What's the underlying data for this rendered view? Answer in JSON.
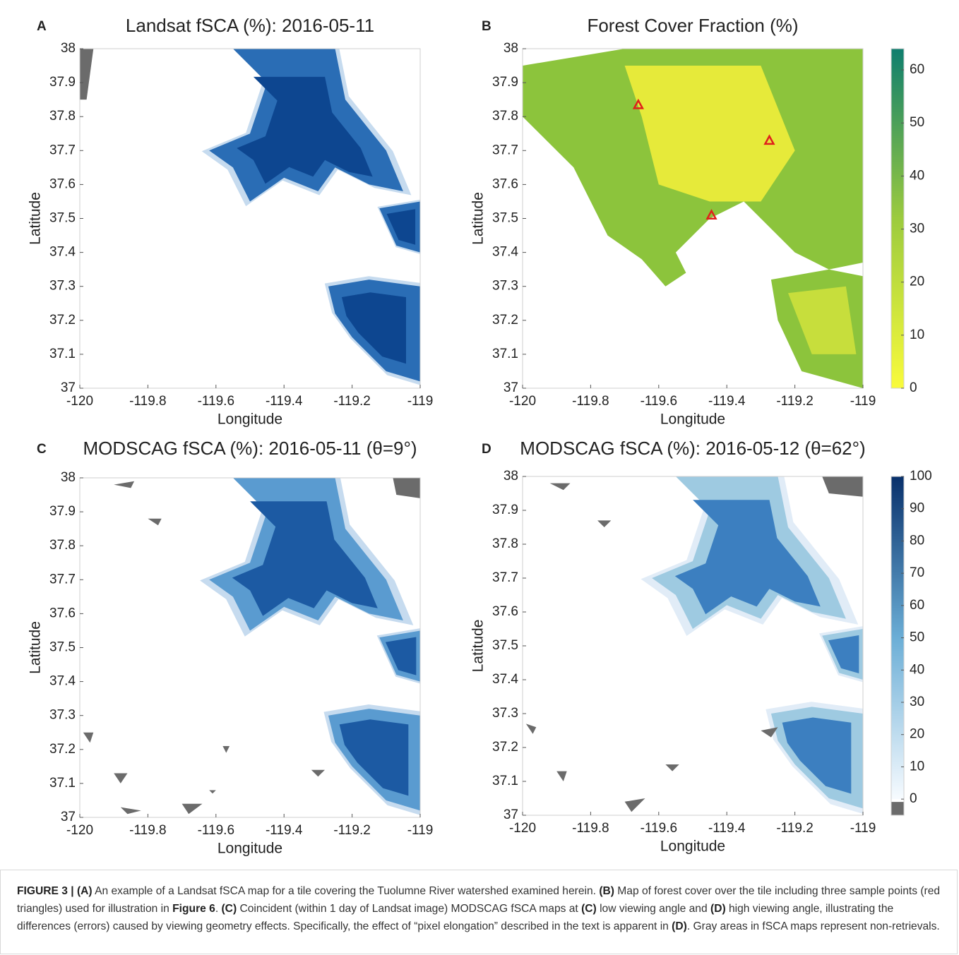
{
  "panels": [
    {
      "label": "A",
      "title": "Landsat fSCA (%): 2016-05-11",
      "xlabel": "Longitude",
      "ylabel": "Latitude",
      "xlim": [
        -120,
        -119
      ],
      "xticks": [
        -120,
        -119.8,
        -119.6,
        -119.4,
        -119.2,
        -119
      ],
      "ylim": [
        37,
        38
      ],
      "yticks": [
        37,
        37.1,
        37.2,
        37.3,
        37.4,
        37.5,
        37.6,
        37.7,
        37.8,
        37.9,
        38
      ]
    },
    {
      "label": "B",
      "title": "Forest Cover Fraction (%)",
      "xlabel": "Longitude",
      "ylabel": "Latitude",
      "xlim": [
        -120,
        -119
      ],
      "xticks": [
        -120,
        -119.8,
        -119.6,
        -119.4,
        -119.2,
        -119
      ],
      "ylim": [
        37,
        38
      ],
      "yticks": [
        37,
        37.1,
        37.2,
        37.3,
        37.4,
        37.5,
        37.6,
        37.7,
        37.8,
        37.9,
        38
      ],
      "points": {
        "lon": [
          -119.66,
          -119.275,
          -119.445
        ],
        "lat": [
          37.835,
          37.73,
          37.51
        ],
        "color": "#e0201b"
      },
      "colorbar": {
        "lim": [
          0,
          64
        ],
        "ticks": [
          0,
          10,
          20,
          30,
          40,
          50,
          60
        ],
        "colors": [
          "#f9fb3c",
          "#9ccb3e",
          "#0e7e6e"
        ]
      }
    },
    {
      "label": "C",
      "title": "MODSCAG fSCA (%): 2016-05-11 (θ=9°)",
      "xlabel": "Longitude",
      "ylabel": "Latitude",
      "xlim": [
        -120,
        -119
      ],
      "xticks": [
        -120,
        -119.8,
        -119.6,
        -119.4,
        -119.2,
        -119
      ],
      "ylim": [
        37,
        38
      ],
      "yticks": [
        37,
        37.1,
        37.2,
        37.3,
        37.4,
        37.5,
        37.6,
        37.7,
        37.8,
        37.9,
        38
      ]
    },
    {
      "label": "D",
      "title": "MODSCAG fSCA (%): 2016-05-12 (θ=62°)",
      "xlabel": "Longitude",
      "ylabel": "Latitude",
      "xlim": [
        -120,
        -119
      ],
      "xticks": [
        -120,
        -119.8,
        -119.6,
        -119.4,
        -119.2,
        -119
      ],
      "ylim": [
        37,
        38
      ],
      "yticks": [
        37,
        37.1,
        37.2,
        37.3,
        37.4,
        37.5,
        37.6,
        37.7,
        37.8,
        37.9,
        38
      ],
      "colorbar": {
        "lim": [
          -5,
          100
        ],
        "ticks": [
          0,
          10,
          20,
          30,
          40,
          50,
          60,
          70,
          80,
          90,
          100
        ],
        "colors": [
          "#f7fbff",
          "#6baed6",
          "#08306b"
        ],
        "nodata_color": "#6b6b6b"
      }
    }
  ],
  "caption": [
    {
      "text": "FIGURE 3 | (A)",
      "bold": true
    },
    {
      "text": " An example of a Landsat fSCA map for a tile covering the Tuolumne River watershed examined herein. ",
      "bold": false
    },
    {
      "text": "(B)",
      "bold": true
    },
    {
      "text": " Map of forest cover over the tile including three sample points (red triangles) used for illustration in ",
      "bold": false
    },
    {
      "text": "Figure 6",
      "bold": true
    },
    {
      "text": ". ",
      "bold": false
    },
    {
      "text": "(C)",
      "bold": true
    },
    {
      "text": " Coincident (within 1 day of Landsat image) MODSCAG fSCA maps at ",
      "bold": false
    },
    {
      "text": "(C)",
      "bold": true
    },
    {
      "text": " low viewing angle and ",
      "bold": false
    },
    {
      "text": "(D)",
      "bold": true
    },
    {
      "text": " high viewing angle, illustrating the differences (errors) caused by viewing geometry effects. Specifically, the effect of “pixel elongation” described in the text is apparent in ",
      "bold": false
    },
    {
      "text": "(D)",
      "bold": true
    },
    {
      "text": ". Gray areas in fSCA maps represent non-retrievals.",
      "bold": false
    }
  ]
}
